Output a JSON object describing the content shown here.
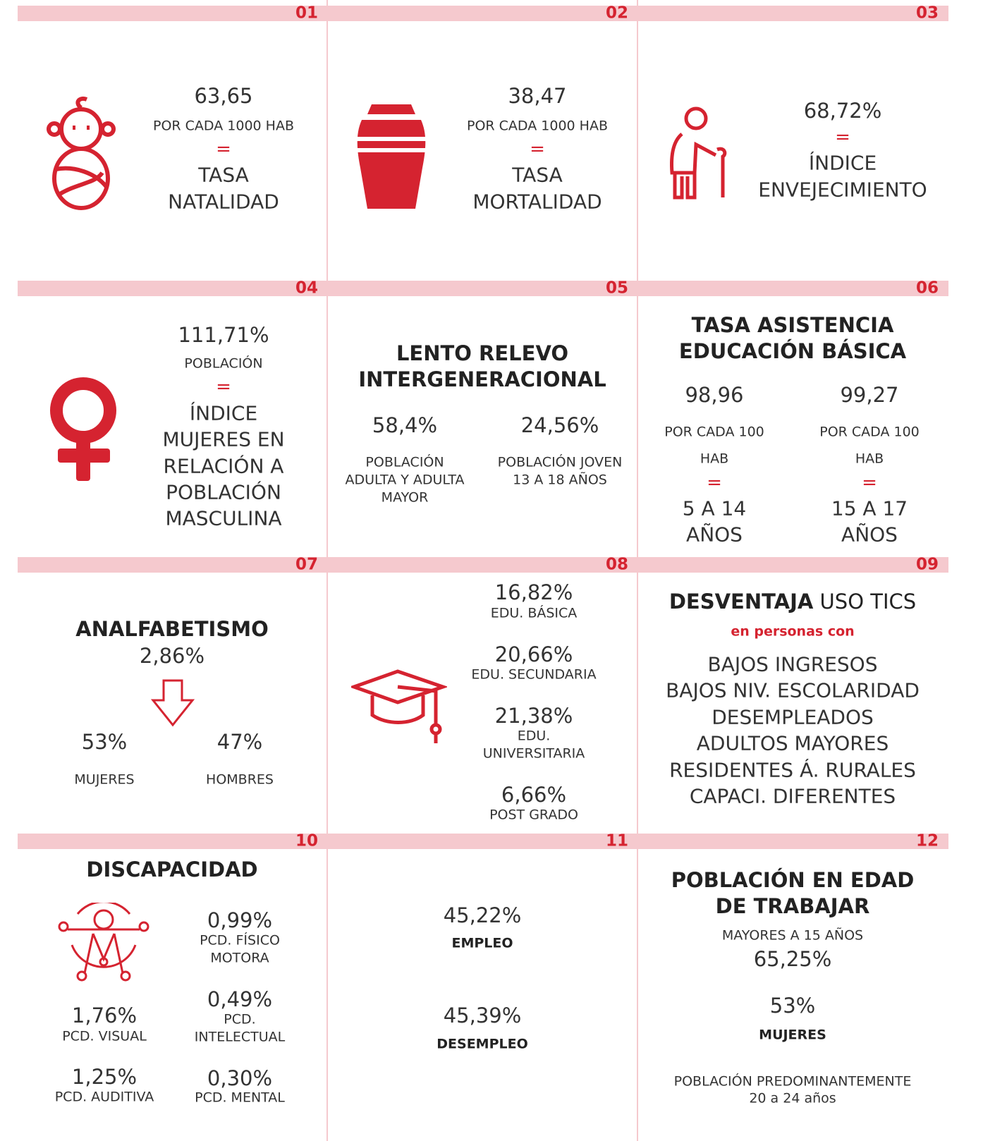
{
  "cells": [
    {
      "number": "01",
      "value": "63,65",
      "unit": "POR CADA 1000 HAB",
      "equals": "=",
      "label": [
        "TASA",
        "NATALIDAD"
      ]
    },
    {
      "number": "02",
      "value": "38,47",
      "unit": "POR CADA 1000 HAB",
      "equals": "=",
      "label": [
        "TASA",
        "MORTALIDAD"
      ]
    },
    {
      "number": "03",
      "value": "68,72%",
      "equals": "=",
      "label": [
        "ÍNDICE",
        "ENVEJECIMIENTO"
      ]
    },
    {
      "number": "04",
      "value": "111,71%",
      "unit": "POBLACIÓN",
      "equals": "=",
      "label": [
        "ÍNDICE",
        "MUJERES EN",
        "RELACIÓN A",
        "POBLACIÓN",
        "MASCULINA"
      ]
    },
    {
      "number": "05",
      "title": [
        "LENTO RELEVO",
        "INTERGENERACIONAL"
      ],
      "items": [
        {
          "value": "58,4%",
          "label": [
            "POBLACIÓN",
            "ADULTA Y ADULTA",
            "MAYOR"
          ]
        },
        {
          "value": "24,56%",
          "label": [
            "POBLACIÓN JOVEN",
            "13 A 18 AÑOS"
          ]
        }
      ]
    },
    {
      "number": "06",
      "title": [
        "TASA ASISTENCIA",
        "EDUCACIÓN BÁSICA"
      ],
      "items": [
        {
          "value": "98,96",
          "unit": [
            "POR CADA 100",
            "HAB"
          ],
          "equals": "=",
          "label": [
            "5 A 14",
            "AÑOS"
          ]
        },
        {
          "value": "99,27",
          "unit": [
            "POR CADA 100",
            "HAB"
          ],
          "equals": "=",
          "label": [
            "15 A 17",
            "AÑOS"
          ]
        }
      ]
    },
    {
      "number": "07",
      "title": "ANALFABETISMO",
      "value": "2,86%",
      "items": [
        {
          "value": "53%",
          "label": "MUJERES"
        },
        {
          "value": "47%",
          "label": "HOMBRES"
        }
      ]
    },
    {
      "number": "08",
      "items": [
        {
          "value": "16,82%",
          "label": [
            "EDU. BÁSICA"
          ]
        },
        {
          "value": "20,66%",
          "label": [
            "EDU. SECUNDARIA"
          ]
        },
        {
          "value": "21,38%",
          "label": [
            "EDU.",
            "UNIVERSITARIA"
          ]
        },
        {
          "value": "6,66%",
          "label": [
            "POST GRADO"
          ]
        }
      ]
    },
    {
      "number": "09",
      "title_bold": "DESVENTAJA",
      "title_rest": " USO TICS",
      "subtitle": "en personas con",
      "list": [
        "BAJOS INGRESOS",
        "BAJOS NIV. ESCOLARIDAD",
        "DESEMPLEADOS",
        "ADULTOS MAYORES",
        "RESIDENTES Á. RURALES",
        "CAPACI. DIFERENTES"
      ]
    },
    {
      "number": "10",
      "title": "DISCAPACIDAD",
      "items": [
        {
          "value": "0,99%",
          "label": [
            "PCD. FÍSICO",
            "MOTORA"
          ]
        },
        {
          "value": "1,76%",
          "label": [
            "PCD. VISUAL"
          ]
        },
        {
          "value": "0,49%",
          "label": [
            "PCD.",
            "INTELECTUAL"
          ]
        },
        {
          "value": "1,25%",
          "label": [
            "PCD. AUDITIVA"
          ]
        },
        {
          "value": "0,30%",
          "label": [
            "PCD. MENTAL"
          ]
        }
      ]
    },
    {
      "number": "11",
      "items": [
        {
          "value": "45,22%",
          "label": "EMPLEO"
        },
        {
          "value": "45,39%",
          "label": "DESEMPLEO"
        }
      ]
    },
    {
      "number": "12",
      "title": [
        "POBLACIÓN EN EDAD",
        "DE TRABAJAR"
      ],
      "subtitle": "MAYORES A 15 AÑOS",
      "value": "65,25%",
      "value2": "53%",
      "value2_label": "MUJERES",
      "note": [
        "POBLACIÓN PREDOMINANTEMENTE",
        "20 a 24 años"
      ]
    }
  ]
}
